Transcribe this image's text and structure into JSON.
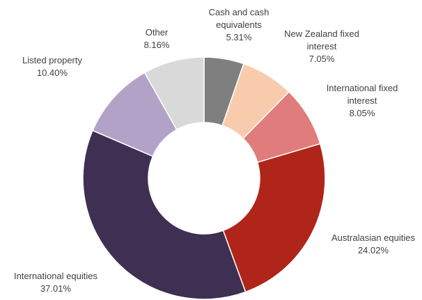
{
  "chart_data": {
    "type": "donut",
    "categories": [
      "Cash and cash equivalents",
      "New Zealand fixed interest",
      "International fixed interest",
      "Australasian equities",
      "International equities",
      "Listed property",
      "Other"
    ],
    "values": [
      5.31,
      7.05,
      8.05,
      24.02,
      37.01,
      10.4,
      8.16
    ],
    "value_labels": [
      "5.31%",
      "7.05%",
      "8.05%",
      "24.02%",
      "37.01%",
      "10.40%",
      "8.16%"
    ],
    "colors": [
      "#7f7f7f",
      "#f8cbad",
      "#e07c7c",
      "#b0251a",
      "#3f2f52",
      "#b3a2c8",
      "#d9d9d9"
    ]
  }
}
